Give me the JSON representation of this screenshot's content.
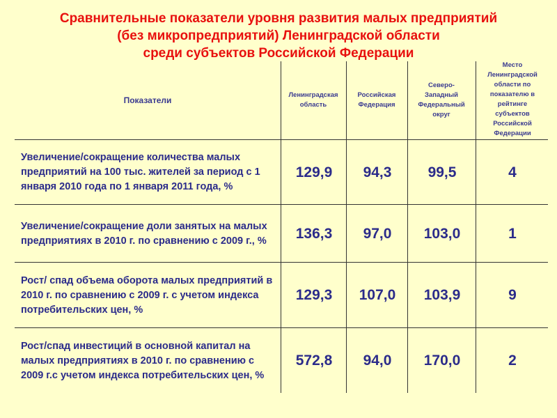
{
  "title": {
    "lines": [
      "Сравнительные показатели уровня развития малых предприятий",
      "(без микропредприятий) Ленинградской области",
      "среди субъектов Российской  Федерации"
    ]
  },
  "colors": {
    "background": "#FFFFCC",
    "title": "#E8100E",
    "text": "#2B2B8A"
  },
  "table": {
    "headers": [
      "Показатели",
      "Ленинградская область",
      "Российская Федерация",
      "Северо-Западный Федеральный округ",
      "Место Ленинградской области по показателю в рейтинге субъектов Российской Федерации"
    ],
    "rows": [
      {
        "label": "Увеличение/сокращение количества малых предприятий на 100 тыс. жителей за период с 1 января 2010 года по 1 января 2011 года, %",
        "values": [
          "129,9",
          "94,3",
          "99,5",
          "4"
        ]
      },
      {
        "label": "Увеличение/сокращение доли занятых на малых предприятиях в 2010 г. по сравнению с 2009 г., %",
        "values": [
          "136,3",
          "97,0",
          "103,0",
          "1"
        ]
      },
      {
        "label": "Рост/ спад объема оборота малых предприятий в 2010 г. по сравнению с 2009 г. с учетом индекса потребительских цен, %",
        "values": [
          "129,3",
          "107,0",
          "103,9",
          "9"
        ]
      },
      {
        "label": "Рост/спад инвестиций в основной капитал на малых предприятиях в 2010 г. по сравнению с 2009 г.с учетом индекса потребительских цен, %",
        "values": [
          "572,8",
          "94,0",
          "170,0",
          "2"
        ]
      }
    ]
  }
}
